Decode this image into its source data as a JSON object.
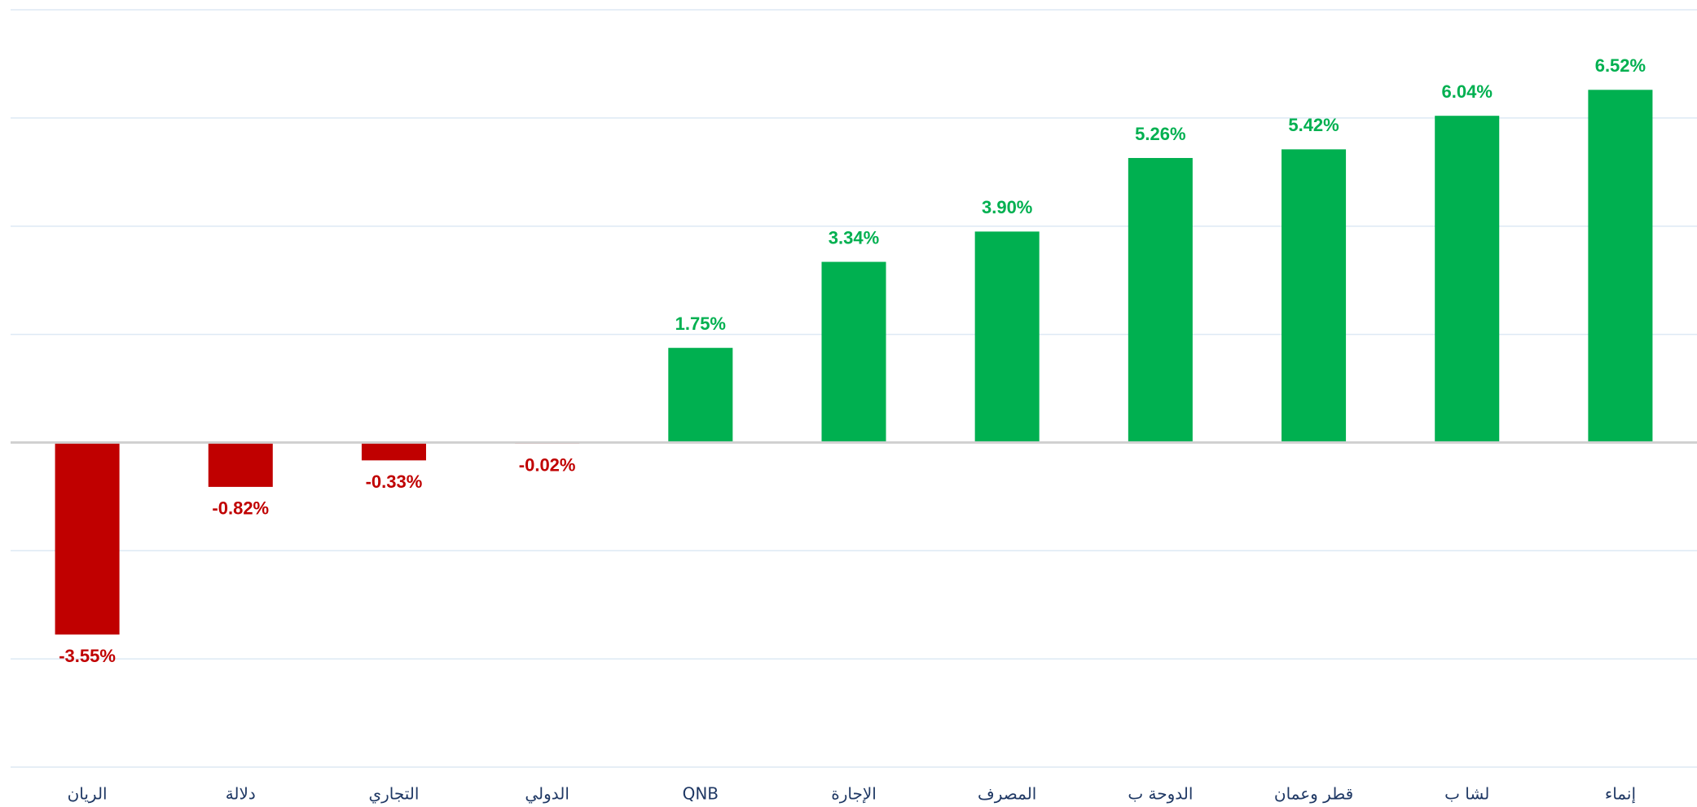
{
  "chart_data": {
    "type": "bar",
    "categories": [
      "الريان",
      "دلالة",
      "التجاري",
      "الدولي",
      "QNB",
      "الإجارة",
      "المصرف",
      "الدوحة ب",
      "قطر وعمان",
      "لشا ب",
      "إنماء"
    ],
    "values": [
      -3.55,
      -0.82,
      -0.33,
      -0.02,
      1.75,
      3.34,
      3.9,
      5.26,
      5.42,
      6.04,
      6.52
    ],
    "value_labels": [
      "-3.55%",
      "-0.82%",
      "-0.33%",
      "-0.02%",
      "1.75%",
      "3.34%",
      "3.90%",
      "5.26%",
      "5.42%",
      "6.04%",
      "6.52%"
    ],
    "colors": {
      "positive": "#00b050",
      "negative": "#c00000"
    },
    "ylim": [
      -6,
      8
    ],
    "yticks": [
      -6,
      -4,
      -2,
      0,
      2,
      4,
      6,
      8
    ],
    "grid": true
  }
}
